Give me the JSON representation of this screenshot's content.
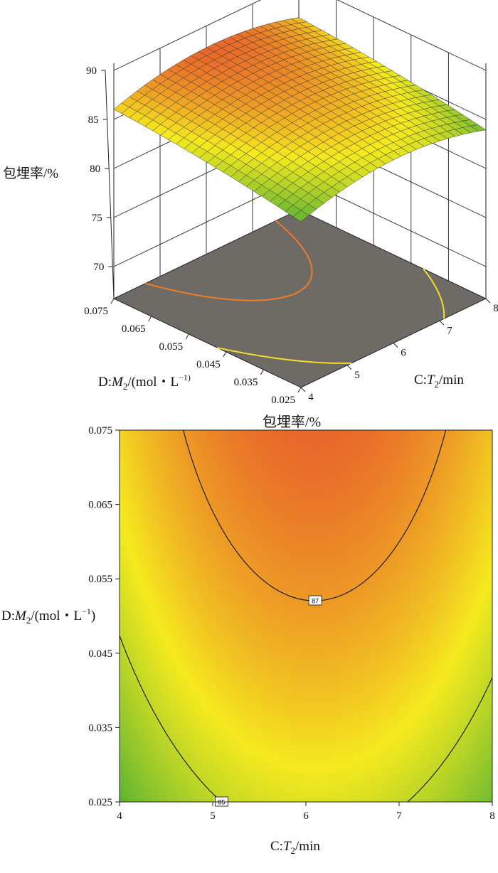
{
  "chart_data": [
    {
      "type": "surface",
      "zlabel": "包埋率/%",
      "x_axis": {
        "var": "C",
        "sym": "T",
        "sub": "2",
        "unit": "/min",
        "range": [
          4,
          8
        ],
        "ticks": [
          "4",
          "5",
          "6",
          "7",
          "8"
        ]
      },
      "y_axis": {
        "var": "D",
        "sym": "M",
        "sub": "2",
        "unit_pre": "/(mol・L",
        "sup": "−1)",
        "unit_post": "",
        "range": [
          0.025,
          0.075
        ],
        "ticks": [
          "0.025",
          "0.035",
          "0.045",
          "0.055",
          "0.065",
          "0.075"
        ]
      },
      "z_ticks": [
        "70",
        "75",
        "80",
        "85",
        "90"
      ],
      "zlim": [
        70,
        90
      ],
      "model": {
        "const": 86.9,
        "c_lin": 0.15,
        "c_quad": -1.62,
        "d_lin": 1.2,
        "d_quad": -0.3,
        "cd": 0.0
      },
      "floor_contours": [
        85,
        87
      ],
      "colors": {
        "low": "#5cb334",
        "mid": "#f5ea1e",
        "high": "#e8662a",
        "floor": "#6e6a66"
      }
    },
    {
      "type": "contour",
      "title": "包埋率/%",
      "x_axis": {
        "var": "C",
        "sym": "T",
        "sub": "2",
        "unit": "/min",
        "range": [
          4,
          8
        ],
        "ticks": [
          "4",
          "5",
          "6",
          "7",
          "8"
        ]
      },
      "y_axis": {
        "var": "D",
        "sym": "M",
        "sub": "2",
        "unit_pre": "/(mol・L",
        "sup": "−1",
        "unit_post": ")",
        "range": [
          0.025,
          0.075
        ],
        "ticks": [
          "0.025",
          "0.035",
          "0.045",
          "0.055",
          "0.065",
          "0.075"
        ]
      },
      "contours": [
        {
          "level": 85,
          "label": "85"
        },
        {
          "level": 87,
          "label": "87"
        }
      ]
    }
  ]
}
